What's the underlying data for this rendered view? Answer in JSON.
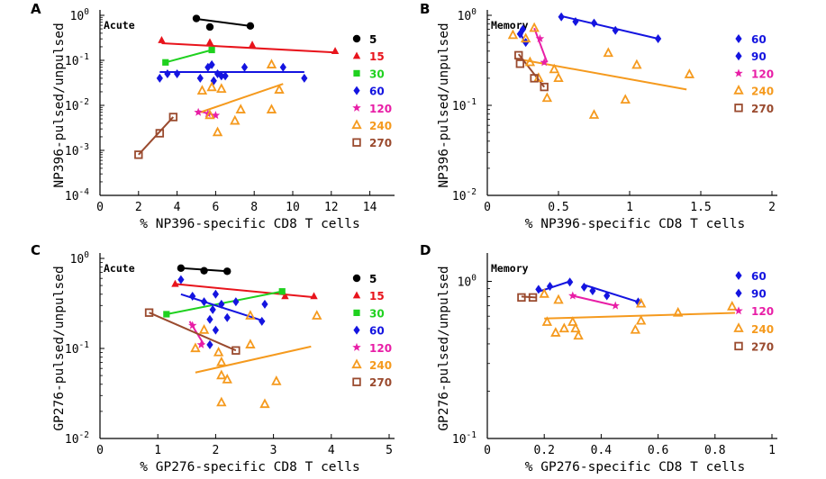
{
  "figure": {
    "legend_labels": [
      "5",
      "15",
      "30",
      "60",
      "120",
      "240",
      "270"
    ],
    "colors": {
      "5": "#000000",
      "15": "#e8141c",
      "30": "#1fd11f",
      "60": "#1414e0",
      "90": "#1414e0",
      "120": "#e81ea6",
      "240": "#f59a1e",
      "270": "#9a4a2e"
    },
    "markers": {
      "5": "circle",
      "15": "triangle",
      "30": "square",
      "60": "diamond",
      "90": "diamond",
      "120": "star",
      "240": "open-triangle",
      "270": "open-square"
    }
  },
  "chart_data": [
    {
      "panel": "A",
      "title": "Acute",
      "type": "scatter",
      "xscale": "linear",
      "yscale": "log",
      "xlim": [
        0,
        15
      ],
      "ylim": [
        0.0001,
        1
      ],
      "xticks": [
        0,
        2,
        4,
        6,
        8,
        10,
        12,
        14
      ],
      "yticks": [
        0.0001,
        0.001,
        0.01,
        0.1,
        1
      ],
      "ytick_labels": [
        "10⁻⁴",
        "10⁻³",
        "10⁻²",
        "10⁻¹",
        "10⁰"
      ],
      "xlabel": "% NP396-specific CD8 T cells",
      "ylabel": "NP396-pulsed/unpulsed",
      "series": [
        {
          "name": "5",
          "points": [
            [
              5.0,
              0.85
            ],
            [
              5.7,
              0.55
            ],
            [
              7.8,
              0.58
            ]
          ],
          "fit": [
            [
              5.0,
              0.83
            ],
            [
              7.8,
              0.58
            ]
          ]
        },
        {
          "name": "15",
          "points": [
            [
              3.2,
              0.28
            ],
            [
              5.7,
              0.25
            ],
            [
              7.9,
              0.22
            ],
            [
              12.2,
              0.16
            ]
          ],
          "fit": [
            [
              3.2,
              0.24
            ],
            [
              12.2,
              0.15
            ]
          ]
        },
        {
          "name": "30",
          "points": [
            [
              3.4,
              0.09
            ],
            [
              5.8,
              0.17
            ]
          ],
          "fit": [
            [
              3.4,
              0.09
            ],
            [
              5.8,
              0.17
            ]
          ]
        },
        {
          "name": "60",
          "points": [
            [
              3.1,
              0.04
            ],
            [
              3.5,
              0.05
            ],
            [
              4.0,
              0.05
            ],
            [
              5.2,
              0.04
            ],
            [
              5.6,
              0.07
            ],
            [
              5.8,
              0.08
            ],
            [
              6.1,
              0.05
            ],
            [
              6.5,
              0.045
            ],
            [
              7.5,
              0.07
            ],
            [
              9.5,
              0.07
            ],
            [
              10.6,
              0.04
            ],
            [
              5.9,
              0.035
            ],
            [
              6.3,
              0.045
            ]
          ],
          "fit": [
            [
              3.1,
              0.055
            ],
            [
              10.6,
              0.055
            ]
          ]
        },
        {
          "name": "120",
          "points": [
            [
              5.1,
              0.007
            ],
            [
              5.6,
              0.0065
            ],
            [
              6.0,
              0.006
            ]
          ],
          "fit": [
            [
              5.1,
              0.0075
            ],
            [
              6.0,
              0.006
            ]
          ]
        },
        {
          "name": "240",
          "points": [
            [
              5.3,
              0.021
            ],
            [
              5.8,
              0.025
            ],
            [
              6.3,
              0.023
            ],
            [
              5.7,
              0.006
            ],
            [
              6.1,
              0.0025
            ],
            [
              7.0,
              0.0045
            ],
            [
              7.3,
              0.008
            ],
            [
              8.9,
              0.08
            ],
            [
              9.3,
              0.022
            ],
            [
              8.9,
              0.008
            ]
          ],
          "fit": [
            [
              5.2,
              0.007
            ],
            [
              9.5,
              0.03
            ]
          ]
        },
        {
          "name": "270",
          "points": [
            [
              2.0,
              0.0008
            ],
            [
              3.1,
              0.0024
            ],
            [
              3.8,
              0.0055
            ]
          ],
          "fit": [
            [
              2.0,
              0.0008
            ],
            [
              3.8,
              0.0055
            ]
          ]
        }
      ]
    },
    {
      "panel": "B",
      "title": "Memory",
      "type": "scatter",
      "xscale": "linear",
      "yscale": "log",
      "xlim": [
        0,
        2
      ],
      "ylim": [
        0.01,
        1
      ],
      "xticks": [
        0,
        0.5,
        1,
        1.5,
        2
      ],
      "xtick_labels": [
        "0",
        "0.5",
        "1",
        "1.5",
        "2"
      ],
      "yticks": [
        0.01,
        0.1,
        1
      ],
      "ytick_labels": [
        "10⁻²",
        "10⁻¹",
        "10⁰"
      ],
      "xlabel": "% NP396-specific CD8 T cells",
      "ylabel": "NP396-pulsed/unpulsed",
      "series": [
        {
          "name": "60",
          "points": [
            [
              0.52,
              0.96
            ],
            [
              0.62,
              0.85
            ],
            [
              0.75,
              0.82
            ],
            [
              0.9,
              0.68
            ],
            [
              1.2,
              0.55
            ]
          ],
          "fit": [
            [
              0.52,
              0.98
            ],
            [
              1.2,
              0.55
            ]
          ]
        },
        {
          "name": "90",
          "points": [
            [
              0.23,
              0.62
            ],
            [
              0.25,
              0.7
            ],
            [
              0.27,
              0.5
            ]
          ],
          "fit": [
            [
              0.23,
              0.65
            ],
            [
              0.27,
              0.47
            ]
          ]
        },
        {
          "name": "120",
          "points": [
            [
              0.37,
              0.55
            ],
            [
              0.4,
              0.3
            ]
          ],
          "fit": [
            [
              0.33,
              0.72
            ],
            [
              0.42,
              0.3
            ]
          ]
        },
        {
          "name": "240",
          "points": [
            [
              0.18,
              0.6
            ],
            [
              0.27,
              0.55
            ],
            [
              0.33,
              0.72
            ],
            [
              0.3,
              0.3
            ],
            [
              0.36,
              0.2
            ],
            [
              0.42,
              0.12
            ],
            [
              0.47,
              0.25
            ],
            [
              0.5,
              0.2
            ],
            [
              0.75,
              0.078
            ],
            [
              0.85,
              0.38
            ],
            [
              0.97,
              0.115
            ],
            [
              1.05,
              0.28
            ],
            [
              1.42,
              0.22
            ]
          ],
          "fit": [
            [
              0.2,
              0.33
            ],
            [
              1.4,
              0.15
            ]
          ]
        },
        {
          "name": "270",
          "points": [
            [
              0.22,
              0.36
            ],
            [
              0.23,
              0.29
            ],
            [
              0.33,
              0.2
            ],
            [
              0.4,
              0.16
            ]
          ],
          "fit": [
            [
              0.22,
              0.37
            ],
            [
              0.4,
              0.16
            ]
          ]
        }
      ]
    },
    {
      "panel": "C",
      "title": "Acute",
      "type": "scatter",
      "xscale": "linear",
      "yscale": "log",
      "xlim": [
        0,
        5
      ],
      "ylim": [
        0.01,
        1
      ],
      "xticks": [
        0,
        1,
        2,
        3,
        4,
        5
      ],
      "yticks": [
        0.01,
        0.1,
        1
      ],
      "ytick_labels": [
        "10⁻²",
        "10⁻¹",
        "10⁰"
      ],
      "xlabel": "% GP276-specific CD8 T cells",
      "ylabel": "GP276-pulsed/unpulsed",
      "series": [
        {
          "name": "5",
          "points": [
            [
              1.4,
              0.78
            ],
            [
              1.8,
              0.73
            ],
            [
              2.2,
              0.72
            ]
          ],
          "fit": [
            [
              1.4,
              0.78
            ],
            [
              2.2,
              0.72
            ]
          ]
        },
        {
          "name": "15",
          "points": [
            [
              1.3,
              0.52
            ],
            [
              3.2,
              0.38
            ],
            [
              3.7,
              0.38
            ]
          ],
          "fit": [
            [
              1.3,
              0.52
            ],
            [
              3.7,
              0.37
            ]
          ]
        },
        {
          "name": "30",
          "points": [
            [
              1.15,
              0.24
            ],
            [
              3.15,
              0.43
            ]
          ],
          "fit": [
            [
              1.15,
              0.24
            ],
            [
              3.15,
              0.43
            ]
          ]
        },
        {
          "name": "60",
          "points": [
            [
              1.4,
              0.58
            ],
            [
              1.6,
              0.38
            ],
            [
              1.8,
              0.33
            ],
            [
              2.0,
              0.4
            ],
            [
              2.1,
              0.31
            ],
            [
              2.35,
              0.33
            ],
            [
              1.95,
              0.27
            ],
            [
              1.9,
              0.21
            ],
            [
              2.0,
              0.16
            ],
            [
              1.9,
              0.11
            ],
            [
              2.2,
              0.22
            ],
            [
              2.8,
              0.2
            ],
            [
              2.85,
              0.31
            ]
          ],
          "fit": [
            [
              1.4,
              0.4
            ],
            [
              2.85,
              0.2
            ]
          ]
        },
        {
          "name": "120",
          "points": [
            [
              1.6,
              0.18
            ],
            [
              1.75,
              0.11
            ]
          ],
          "fit": [
            [
              1.55,
              0.2
            ],
            [
              1.8,
              0.11
            ]
          ]
        },
        {
          "name": "240",
          "points": [
            [
              1.65,
              0.1
            ],
            [
              1.8,
              0.16
            ],
            [
              2.05,
              0.09
            ],
            [
              2.1,
              0.07
            ],
            [
              2.1,
              0.05
            ],
            [
              2.2,
              0.045
            ],
            [
              2.1,
              0.025
            ],
            [
              2.6,
              0.23
            ],
            [
              2.6,
              0.11
            ],
            [
              2.85,
              0.024
            ],
            [
              3.05,
              0.043
            ],
            [
              3.75,
              0.23
            ]
          ],
          "fit": [
            [
              1.65,
              0.054
            ],
            [
              3.65,
              0.105
            ]
          ]
        },
        {
          "name": "270",
          "points": [
            [
              0.85,
              0.25
            ],
            [
              2.35,
              0.095
            ]
          ],
          "fit": [
            [
              0.85,
              0.25
            ],
            [
              2.35,
              0.095
            ]
          ]
        }
      ]
    },
    {
      "panel": "D",
      "title": "Memory",
      "type": "scatter",
      "xscale": "linear",
      "yscale": "log",
      "xlim": [
        0,
        1
      ],
      "ylim": [
        0.1,
        1.4
      ],
      "xticks": [
        0,
        0.2,
        0.4,
        0.6,
        0.8,
        1
      ],
      "xtick_labels": [
        "0",
        "0.2",
        "0.4",
        "0.6",
        "0.8",
        "1"
      ],
      "yticks": [
        0.1,
        1
      ],
      "ytick_labels": [
        "10⁻¹",
        "10⁰"
      ],
      "xlabel": "% GP276-specific CD8 T cells",
      "ylabel": "GP276-pulsed/unpulsed",
      "series": [
        {
          "name": "60",
          "points": [
            [
              0.34,
              0.92
            ],
            [
              0.37,
              0.87
            ],
            [
              0.42,
              0.81
            ],
            [
              0.53,
              0.74
            ]
          ],
          "fit": [
            [
              0.34,
              0.95
            ],
            [
              0.53,
              0.74
            ]
          ]
        },
        {
          "name": "90",
          "points": [
            [
              0.18,
              0.89
            ],
            [
              0.22,
              0.93
            ],
            [
              0.29,
              0.99
            ]
          ],
          "fit": [
            [
              0.18,
              0.86
            ],
            [
              0.29,
              1.0
            ]
          ]
        },
        {
          "name": "120",
          "points": [
            [
              0.3,
              0.81
            ],
            [
              0.45,
              0.7
            ]
          ],
          "fit": [
            [
              0.3,
              0.81
            ],
            [
              0.45,
              0.7
            ]
          ]
        },
        {
          "name": "240",
          "points": [
            [
              0.2,
              0.83
            ],
            [
              0.25,
              0.76
            ],
            [
              0.21,
              0.55
            ],
            [
              0.24,
              0.47
            ],
            [
              0.27,
              0.5
            ],
            [
              0.3,
              0.55
            ],
            [
              0.31,
              0.5
            ],
            [
              0.32,
              0.45
            ],
            [
              0.52,
              0.49
            ],
            [
              0.54,
              0.56
            ],
            [
              0.54,
              0.72
            ],
            [
              0.67,
              0.63
            ],
            [
              0.86,
              0.69
            ]
          ],
          "fit": [
            [
              0.2,
              0.58
            ],
            [
              0.87,
              0.63
            ]
          ]
        },
        {
          "name": "270",
          "points": [
            [
              0.12,
              0.79
            ],
            [
              0.16,
              0.79
            ]
          ],
          "fit": [
            [
              0.12,
              0.8
            ],
            [
              0.17,
              0.79
            ]
          ]
        }
      ]
    }
  ]
}
